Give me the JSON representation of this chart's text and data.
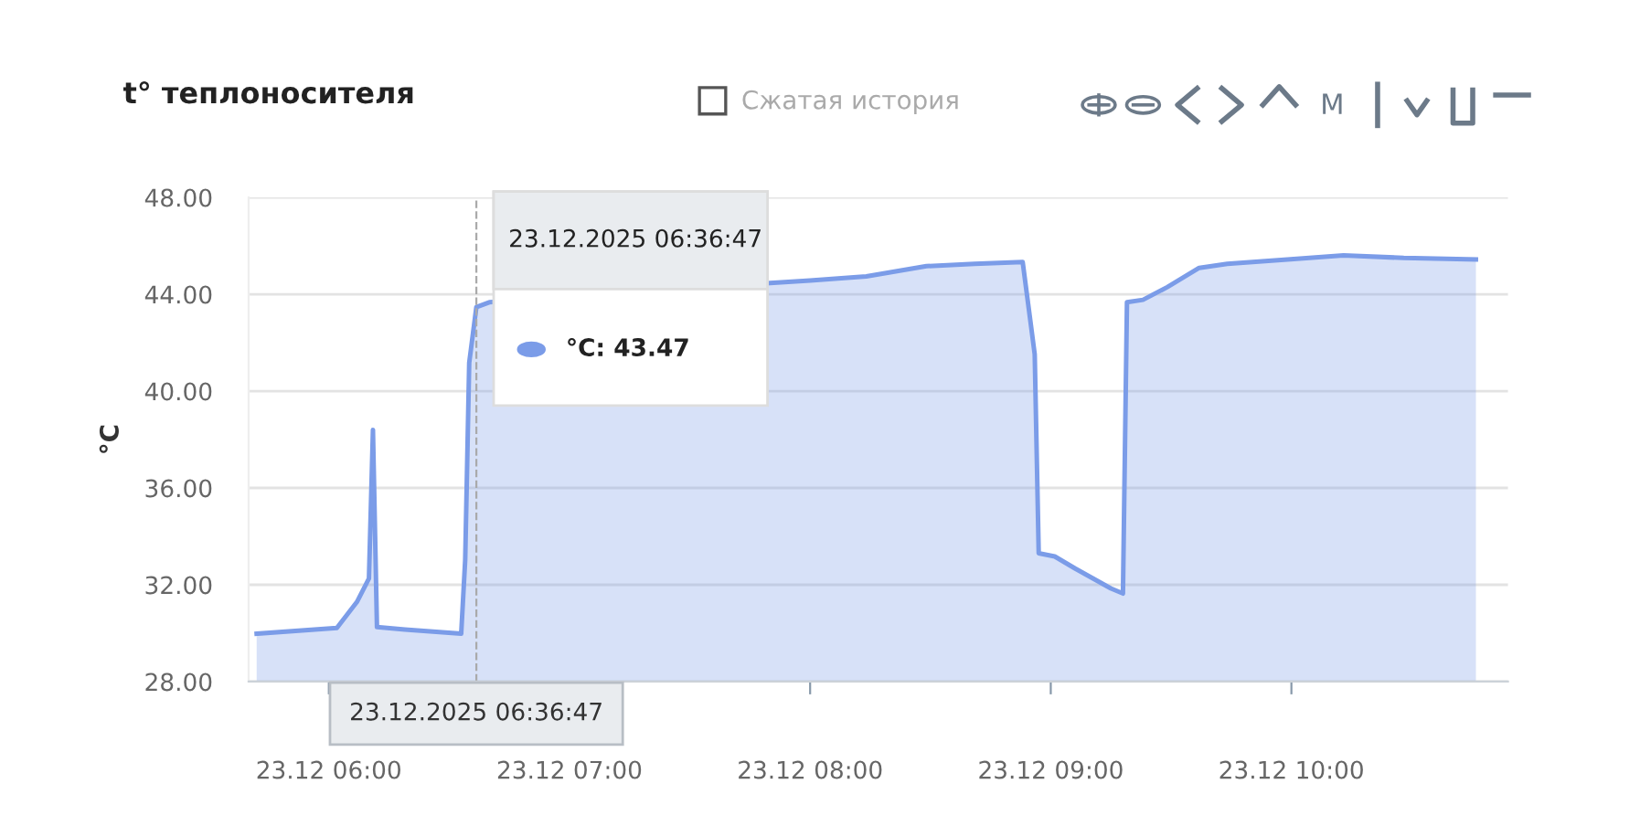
{
  "chart_data": {
    "type": "area",
    "title": "t° теплоносителя",
    "ylabel": "°C",
    "annotations": [
      "23.12.2025 06:36:47",
      "°C: 43.47",
      "Сжатая история",
      "M"
    ],
    "x": [
      "2025-12-23T05:42",
      "2025-12-23T06:02",
      "2025-12-23T06:07",
      "2025-12-23T06:10",
      "2025-12-23T06:11",
      "2025-12-23T06:12",
      "2025-12-23T06:19",
      "2025-12-23T06:33",
      "2025-12-23T06:34",
      "2025-12-23T06:35",
      "2025-12-23T06:36:47",
      "2025-12-23T06:40",
      "2025-12-23T07:50",
      "2025-12-23T08:00",
      "2025-12-23T08:14",
      "2025-12-23T08:29",
      "2025-12-23T08:41",
      "2025-12-23T08:53",
      "2025-12-23T08:56",
      "2025-12-23T08:57",
      "2025-12-23T09:01",
      "2025-12-23T09:06",
      "2025-12-23T09:15",
      "2025-12-23T09:18",
      "2025-12-23T09:19",
      "2025-12-23T09:23",
      "2025-12-23T09:29",
      "2025-12-23T09:37",
      "2025-12-23T09:44",
      "2025-12-23T09:59",
      "2025-12-23T10:13",
      "2025-12-23T10:28",
      "2025-12-23T10:46"
    ],
    "series": [
      {
        "color": "#7b9ce8",
        "values": [
          29.98,
          30.22,
          31.29,
          32.26,
          38.4,
          30.25,
          30.15,
          29.98,
          33.03,
          41.17,
          43.47,
          43.67,
          44.46,
          44.57,
          44.74,
          45.16,
          45.26,
          45.33,
          41.52,
          33.3,
          33.17,
          32.68,
          31.85,
          31.64,
          43.67,
          43.77,
          44.29,
          45.09,
          45.26,
          45.44,
          45.61,
          45.5,
          45.44
        ]
      }
    ],
    "xlim": [
      "2025-12-23T05:40",
      "2025-12-23T10:54"
    ],
    "xticks": [
      {
        "value": "2025-12-23T06:00",
        "label": "23.12 06:00"
      },
      {
        "value": "2025-12-23T07:00",
        "label": "23.12 07:00"
      },
      {
        "value": "2025-12-23T08:00",
        "label": "23.12 08:00"
      },
      {
        "value": "2025-12-23T09:00",
        "label": "23.12 09:00"
      },
      {
        "value": "2025-12-23T10:00",
        "label": "23.12 10:00"
      }
    ],
    "ylim": [
      28,
      48
    ],
    "yticks": [
      {
        "value": 28,
        "label": "28.00"
      },
      {
        "value": 32,
        "label": "32.00"
      },
      {
        "value": 36,
        "label": "36.00"
      },
      {
        "value": 40,
        "label": "40.00"
      },
      {
        "value": 44,
        "label": "44.00"
      },
      {
        "value": 48,
        "label": "48.00"
      }
    ],
    "ref_lines": [
      {
        "axis": "x",
        "value": "2025-12-23T06:36:47",
        "label": "23.12.2025 06:36:47",
        "color": "#aaaaaa",
        "line_style": "dashed"
      }
    ],
    "grid": "y",
    "legend": false,
    "marker": "none",
    "line_style": "solid"
  }
}
